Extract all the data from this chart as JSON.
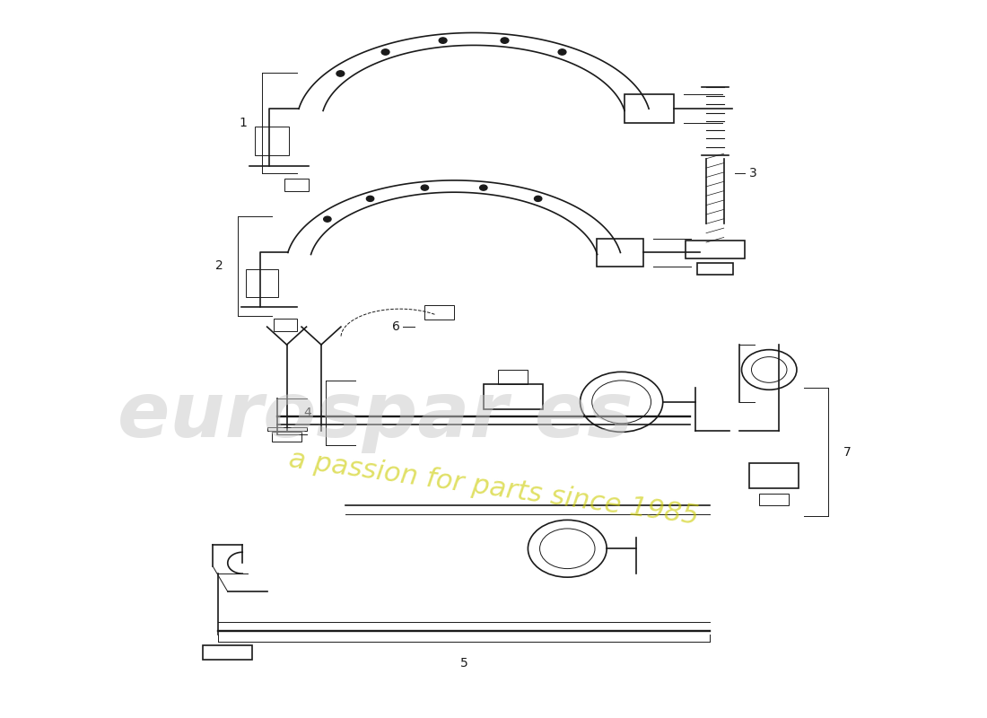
{
  "background_color": "#ffffff",
  "line_color": "#1a1a1a",
  "watermark_color": "#c8c8c8",
  "watermark_yellow": "#cccc00",
  "parts": {
    "labels": [
      "1",
      "2",
      "3",
      "4",
      "5",
      "6",
      "7"
    ]
  }
}
